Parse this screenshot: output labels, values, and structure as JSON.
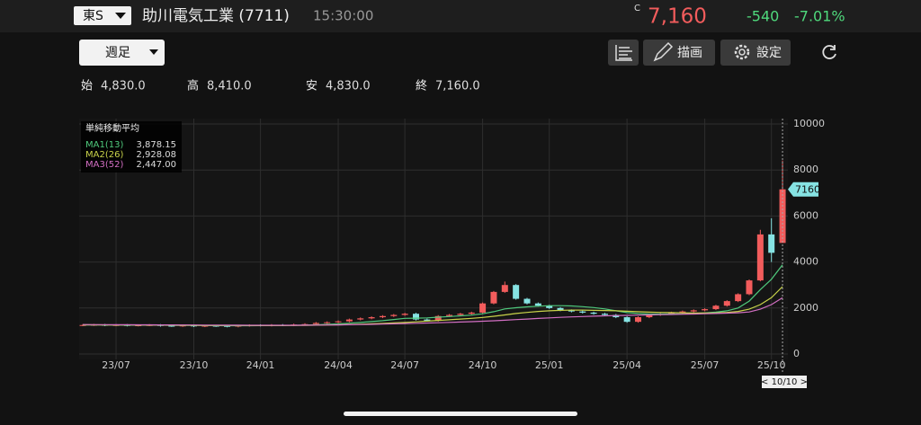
{
  "header": {
    "market": "東S",
    "name": "助川電気工業 (7711)",
    "time": "15:30:00",
    "price_flag": "C",
    "price": "7,160",
    "change": "-540",
    "change_pct": "-7.01%"
  },
  "toolbar": {
    "period": "週足",
    "draw": "描画",
    "settings": "設定"
  },
  "summary": [
    {
      "label": "始",
      "value": "4,830.0"
    },
    {
      "label": "高",
      "value": "8,410.0"
    },
    {
      "label": "安",
      "value": "4,830.0"
    },
    {
      "label": "終",
      "value": "7,160.0"
    }
  ],
  "chart_data": {
    "type": "candlestick",
    "categories": [
      null,
      null,
      null,
      "23/07",
      null,
      null,
      null,
      null,
      null,
      null,
      "23/10",
      null,
      null,
      null,
      null,
      null,
      "24/01",
      null,
      null,
      null,
      null,
      null,
      null,
      "24/04",
      null,
      null,
      null,
      null,
      null,
      "24/07",
      null,
      null,
      null,
      null,
      null,
      null,
      "24/10",
      null,
      null,
      null,
      null,
      null,
      "25/01",
      null,
      null,
      null,
      null,
      null,
      null,
      "25/04",
      null,
      null,
      null,
      null,
      null,
      null,
      "25/07",
      null,
      null,
      null,
      null,
      null,
      "25/10",
      null
    ],
    "open": [
      1250,
      1260,
      1270,
      1250,
      1260,
      1240,
      1250,
      1260,
      1230,
      1220,
      1240,
      1210,
      1230,
      1220,
      1200,
      1230,
      1250,
      1240,
      1260,
      1250,
      1280,
      1300,
      1350,
      1380,
      1420,
      1500,
      1550,
      1600,
      1650,
      1700,
      1750,
      1500,
      1450,
      1650,
      1700,
      1750,
      1800,
      2200,
      2700,
      3000,
      2400,
      2200,
      2100,
      2000,
      1900,
      1850,
      1800,
      1750,
      1700,
      1600,
      1400,
      1600,
      1700,
      1750,
      1800,
      1850,
      1900,
      1950,
      2100,
      2300,
      2600,
      3200,
      5200,
      4830
    ],
    "high": [
      1300,
      1310,
      1310,
      1300,
      1300,
      1290,
      1300,
      1300,
      1270,
      1280,
      1280,
      1270,
      1270,
      1260,
      1270,
      1290,
      1290,
      1300,
      1300,
      1320,
      1340,
      1390,
      1420,
      1460,
      1540,
      1590,
      1640,
      1690,
      1740,
      1790,
      1790,
      1540,
      1690,
      1740,
      1790,
      1840,
      2240,
      2740,
      3150,
      3040,
      2440,
      2240,
      2140,
      2040,
      1940,
      1890,
      1840,
      1790,
      1740,
      1640,
      1640,
      1740,
      1790,
      1840,
      1890,
      1940,
      1990,
      2140,
      2340,
      2640,
      3240,
      5400,
      5900,
      8410
    ],
    "low": [
      1210,
      1220,
      1210,
      1210,
      1200,
      1200,
      1210,
      1190,
      1180,
      1180,
      1170,
      1170,
      1180,
      1160,
      1160,
      1190,
      1200,
      1200,
      1210,
      1210,
      1240,
      1260,
      1310,
      1340,
      1380,
      1460,
      1510,
      1560,
      1610,
      1660,
      1460,
      1410,
      1410,
      1610,
      1660,
      1710,
      1760,
      2160,
      2660,
      2360,
      2160,
      2060,
      1960,
      1860,
      1810,
      1760,
      1710,
      1660,
      1560,
      1360,
      1360,
      1560,
      1660,
      1710,
      1760,
      1810,
      1860,
      1910,
      2060,
      2260,
      2560,
      3160,
      4000,
      4830
    ],
    "close": [
      1260,
      1270,
      1250,
      1260,
      1240,
      1250,
      1260,
      1230,
      1220,
      1240,
      1210,
      1230,
      1220,
      1200,
      1230,
      1250,
      1240,
      1260,
      1250,
      1280,
      1300,
      1350,
      1380,
      1420,
      1500,
      1550,
      1600,
      1650,
      1700,
      1750,
      1500,
      1450,
      1650,
      1700,
      1750,
      1800,
      2200,
      2700,
      3000,
      2400,
      2200,
      2100,
      2000,
      1900,
      1850,
      1800,
      1750,
      1700,
      1600,
      1400,
      1600,
      1700,
      1750,
      1800,
      1850,
      1900,
      1950,
      2100,
      2300,
      2600,
      3200,
      5200,
      4400,
      7160
    ],
    "up_color": "#f25c5c",
    "down_color": "#86e3e3",
    "legend_title": "単純移動平均",
    "series": [
      {
        "name": "MA1(13)",
        "legend_value": "3,878.15",
        "color": "#4fc97c",
        "values": [
          1260,
          1260,
          1260,
          1258,
          1255,
          1254,
          1255,
          1252,
          1248,
          1246,
          1242,
          1238,
          1236,
          1232,
          1230,
          1232,
          1236,
          1240,
          1242,
          1248,
          1258,
          1270,
          1290,
          1310,
          1340,
          1370,
          1410,
          1450,
          1500,
          1550,
          1560,
          1570,
          1600,
          1630,
          1660,
          1690,
          1750,
          1840,
          1960,
          2010,
          2050,
          2080,
          2100,
          2100,
          2090,
          2060,
          2020,
          1960,
          1880,
          1800,
          1760,
          1740,
          1740,
          1740,
          1740,
          1760,
          1790,
          1820,
          1880,
          2000,
          2300,
          2800,
          3250,
          3878.15
        ]
      },
      {
        "name": "MA2(26)",
        "legend_value": "2,928.08",
        "color": "#c9d34a",
        "values": [
          1270,
          1268,
          1266,
          1264,
          1262,
          1260,
          1258,
          1256,
          1254,
          1252,
          1250,
          1248,
          1246,
          1244,
          1242,
          1240,
          1240,
          1240,
          1240,
          1242,
          1246,
          1252,
          1260,
          1270,
          1282,
          1296,
          1312,
          1330,
          1350,
          1372,
          1400,
          1430,
          1460,
          1490,
          1520,
          1550,
          1590,
          1640,
          1700,
          1760,
          1810,
          1850,
          1880,
          1900,
          1910,
          1910,
          1900,
          1890,
          1880,
          1860,
          1840,
          1820,
          1810,
          1800,
          1790,
          1780,
          1780,
          1790,
          1810,
          1850,
          1950,
          2150,
          2450,
          2928.08
        ]
      },
      {
        "name": "MA3(52)",
        "legend_value": "2,447.00",
        "color": "#d36fc4",
        "values": [
          1280,
          1278,
          1276,
          1274,
          1272,
          1270,
          1268,
          1266,
          1264,
          1262,
          1260,
          1258,
          1256,
          1254,
          1252,
          1250,
          1250,
          1250,
          1250,
          1250,
          1252,
          1256,
          1260,
          1266,
          1272,
          1280,
          1290,
          1300,
          1312,
          1324,
          1336,
          1348,
          1360,
          1374,
          1390,
          1406,
          1424,
          1446,
          1470,
          1496,
          1520,
          1546,
          1570,
          1592,
          1612,
          1630,
          1646,
          1660,
          1672,
          1680,
          1690,
          1700,
          1710,
          1720,
          1730,
          1740,
          1750,
          1762,
          1776,
          1794,
          1830,
          1950,
          2150,
          2447
        ]
      }
    ],
    "ylim": [
      0,
      10000
    ],
    "yticks": [
      0,
      2000,
      4000,
      6000,
      8000,
      10000
    ],
    "grid": true,
    "current_price": 7160,
    "cursor_label": "< 10/10 >"
  }
}
